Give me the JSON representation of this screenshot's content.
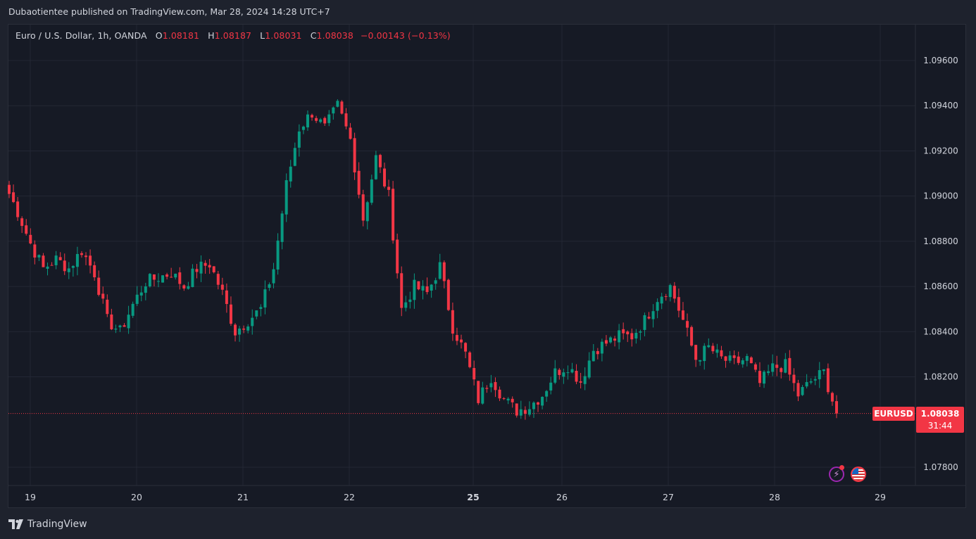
{
  "header": {
    "published_line": "Dubaotientee published on TradingView.com, Mar 28, 2024 14:28 UTC+7"
  },
  "legend": {
    "instrument": "Euro / U.S. Dollar, 1h, OANDA",
    "open_label": "O",
    "open": "1.08181",
    "high_label": "H",
    "high": "1.08187",
    "low_label": "L",
    "low": "1.08031",
    "close_label": "C",
    "close": "1.08038",
    "change": "−0.00143 (−0.13%)"
  },
  "price_marker": {
    "symbol": "EURUSD",
    "price": "1.08038",
    "countdown": "31:44"
  },
  "brand": {
    "name": "TradingView"
  },
  "colors": {
    "up": "#089981",
    "down": "#f23645",
    "background": "#161a25",
    "grid": "#232734",
    "text": "#d1d4dc"
  },
  "icons": [
    "events-lightning-icon",
    "us-flag-icon",
    "tradingview-logo-icon"
  ],
  "chart_data": {
    "type": "candlestick",
    "title": "Euro / U.S. Dollar, 1h, OANDA",
    "interval": "1h",
    "y_range": [
      1.077,
      1.0975
    ],
    "y_ticks": [
      "1.09600",
      "1.09400",
      "1.09200",
      "1.09000",
      "1.08800",
      "1.08600",
      "1.08400",
      "1.08200",
      "1.07800"
    ],
    "x_ticks": [
      {
        "label": "19",
        "bold": false
      },
      {
        "label": "20",
        "bold": false
      },
      {
        "label": "21",
        "bold": false
      },
      {
        "label": "22",
        "bold": false
      },
      {
        "label": "25",
        "bold": true
      },
      {
        "label": "26",
        "bold": false
      },
      {
        "label": "27",
        "bold": false
      },
      {
        "label": "28",
        "bold": false
      },
      {
        "label": "29",
        "bold": false
      }
    ],
    "last_price": 1.08038,
    "close_path": [
      1.0905,
      1.0893,
      1.0879,
      1.0868,
      1.0872,
      1.0868,
      1.0876,
      1.0866,
      1.0845,
      1.084,
      1.0852,
      1.0862,
      1.0864,
      1.0866,
      1.086,
      1.0868,
      1.087,
      1.0857,
      1.084,
      1.0845,
      1.085,
      1.0868,
      1.0905,
      1.093,
      1.0937,
      1.093,
      1.094,
      1.0925,
      1.089,
      1.0917,
      1.09,
      1.085,
      1.086,
      1.0857,
      1.0869,
      1.0842,
      1.083,
      1.081,
      1.082,
      1.081,
      1.0805,
      1.0807,
      1.0812,
      1.0822,
      1.0825,
      1.0818,
      1.0832,
      1.0835,
      1.0838,
      1.0838,
      1.0845,
      1.0855,
      1.086,
      1.0845,
      1.0828,
      1.0833,
      1.0828,
      1.0826,
      1.0828,
      1.0817,
      1.0824,
      1.0825,
      1.0812,
      1.0818,
      1.0822,
      1.08038
    ]
  }
}
